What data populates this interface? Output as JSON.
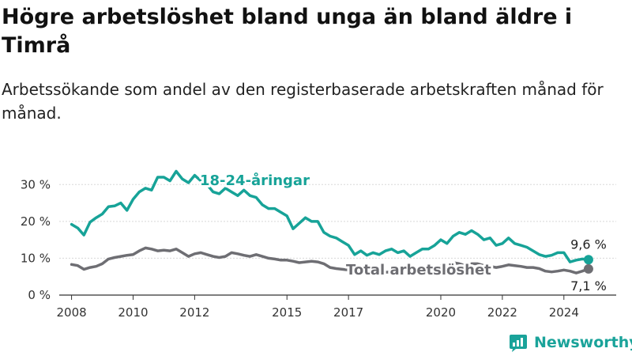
{
  "title": "Högre arbetslöshet bland unga än bland äldre i Timrå",
  "subtitle": "Arbetssökande som andel av den registerbaserade arbetskraften månad för månad.",
  "brand": {
    "name": "Newsworthy"
  },
  "colors": {
    "youth": "#17a398",
    "total": "#6e6e73",
    "grid": "#d8d8d8",
    "axis": "#333333",
    "text": "#333333"
  },
  "chart_data": {
    "type": "line",
    "ylim": [
      0,
      35
    ],
    "yticks": [
      0,
      10,
      20,
      30
    ],
    "ytick_labels": [
      "0 %",
      "10 %",
      "20 %",
      "30 %"
    ],
    "xticks": [
      2008,
      2010,
      2012,
      2015,
      2017,
      2020,
      2022,
      2024
    ],
    "xlim": [
      2007.6,
      2025.7
    ],
    "grid": true,
    "series": [
      {
        "name": "18-24-åringar",
        "color": "#17a398",
        "end_label": "9,6 %",
        "points": [
          [
            2008.0,
            19.2
          ],
          [
            2008.2,
            18.2
          ],
          [
            2008.4,
            16.3
          ],
          [
            2008.6,
            19.8
          ],
          [
            2008.8,
            21.0
          ],
          [
            2009.0,
            22.0
          ],
          [
            2009.2,
            24.0
          ],
          [
            2009.4,
            24.2
          ],
          [
            2009.6,
            25.0
          ],
          [
            2009.8,
            23.0
          ],
          [
            2010.0,
            26.0
          ],
          [
            2010.2,
            28.0
          ],
          [
            2010.4,
            29.0
          ],
          [
            2010.6,
            28.5
          ],
          [
            2010.8,
            32.0
          ],
          [
            2011.0,
            32.0
          ],
          [
            2011.2,
            31.0
          ],
          [
            2011.4,
            33.6
          ],
          [
            2011.6,
            31.5
          ],
          [
            2011.8,
            30.5
          ],
          [
            2012.0,
            32.5
          ],
          [
            2012.2,
            31.0
          ],
          [
            2012.4,
            30.0
          ],
          [
            2012.6,
            28.0
          ],
          [
            2012.8,
            27.5
          ],
          [
            2013.0,
            29.0
          ],
          [
            2013.2,
            28.0
          ],
          [
            2013.4,
            27.0
          ],
          [
            2013.6,
            28.5
          ],
          [
            2013.8,
            27.0
          ],
          [
            2014.0,
            26.5
          ],
          [
            2014.2,
            24.5
          ],
          [
            2014.4,
            23.5
          ],
          [
            2014.6,
            23.5
          ],
          [
            2014.8,
            22.5
          ],
          [
            2015.0,
            21.5
          ],
          [
            2015.2,
            18.0
          ],
          [
            2015.4,
            19.5
          ],
          [
            2015.6,
            21.0
          ],
          [
            2015.8,
            20.0
          ],
          [
            2016.0,
            20.0
          ],
          [
            2016.2,
            17.0
          ],
          [
            2016.4,
            16.0
          ],
          [
            2016.6,
            15.5
          ],
          [
            2016.8,
            14.5
          ],
          [
            2017.0,
            13.5
          ],
          [
            2017.2,
            11.0
          ],
          [
            2017.4,
            12.0
          ],
          [
            2017.6,
            10.8
          ],
          [
            2017.8,
            11.5
          ],
          [
            2018.0,
            11.0
          ],
          [
            2018.2,
            12.0
          ],
          [
            2018.4,
            12.5
          ],
          [
            2018.6,
            11.5
          ],
          [
            2018.8,
            12.0
          ],
          [
            2019.0,
            10.5
          ],
          [
            2019.2,
            11.5
          ],
          [
            2019.4,
            12.5
          ],
          [
            2019.6,
            12.5
          ],
          [
            2019.8,
            13.5
          ],
          [
            2020.0,
            15.0
          ],
          [
            2020.2,
            14.0
          ],
          [
            2020.4,
            16.0
          ],
          [
            2020.6,
            17.0
          ],
          [
            2020.8,
            16.5
          ],
          [
            2021.0,
            17.5
          ],
          [
            2021.2,
            16.5
          ],
          [
            2021.4,
            15.0
          ],
          [
            2021.6,
            15.5
          ],
          [
            2021.8,
            13.5
          ],
          [
            2022.0,
            14.0
          ],
          [
            2022.2,
            15.5
          ],
          [
            2022.4,
            14.0
          ],
          [
            2022.6,
            13.5
          ],
          [
            2022.8,
            13.0
          ],
          [
            2023.0,
            12.0
          ],
          [
            2023.2,
            11.0
          ],
          [
            2023.4,
            10.5
          ],
          [
            2023.6,
            10.8
          ],
          [
            2023.8,
            11.5
          ],
          [
            2024.0,
            11.5
          ],
          [
            2024.2,
            9.0
          ],
          [
            2024.4,
            9.5
          ],
          [
            2024.6,
            9.8
          ],
          [
            2024.8,
            9.6
          ]
        ]
      },
      {
        "name": "Total arbetslöshet",
        "color": "#6e6e73",
        "end_label": "7,1 %",
        "points": [
          [
            2008.0,
            8.3
          ],
          [
            2008.2,
            8.0
          ],
          [
            2008.4,
            7.0
          ],
          [
            2008.6,
            7.5
          ],
          [
            2008.8,
            7.8
          ],
          [
            2009.0,
            8.5
          ],
          [
            2009.2,
            9.8
          ],
          [
            2009.4,
            10.2
          ],
          [
            2009.6,
            10.5
          ],
          [
            2009.8,
            10.8
          ],
          [
            2010.0,
            11.0
          ],
          [
            2010.2,
            12.0
          ],
          [
            2010.4,
            12.8
          ],
          [
            2010.6,
            12.5
          ],
          [
            2010.8,
            12.0
          ],
          [
            2011.0,
            12.2
          ],
          [
            2011.2,
            12.0
          ],
          [
            2011.4,
            12.5
          ],
          [
            2011.6,
            11.5
          ],
          [
            2011.8,
            10.5
          ],
          [
            2012.0,
            11.2
          ],
          [
            2012.2,
            11.5
          ],
          [
            2012.4,
            11.0
          ],
          [
            2012.6,
            10.5
          ],
          [
            2012.8,
            10.2
          ],
          [
            2013.0,
            10.5
          ],
          [
            2013.2,
            11.5
          ],
          [
            2013.4,
            11.2
          ],
          [
            2013.6,
            10.8
          ],
          [
            2013.8,
            10.5
          ],
          [
            2014.0,
            11.0
          ],
          [
            2014.2,
            10.5
          ],
          [
            2014.4,
            10.0
          ],
          [
            2014.6,
            9.8
          ],
          [
            2014.8,
            9.5
          ],
          [
            2015.0,
            9.5
          ],
          [
            2015.2,
            9.2
          ],
          [
            2015.4,
            8.8
          ],
          [
            2015.6,
            9.0
          ],
          [
            2015.8,
            9.2
          ],
          [
            2016.0,
            9.0
          ],
          [
            2016.2,
            8.5
          ],
          [
            2016.4,
            7.5
          ],
          [
            2016.6,
            7.2
          ],
          [
            2016.8,
            7.0
          ],
          [
            2017.0,
            6.8
          ],
          [
            2017.2,
            6.5
          ],
          [
            2017.4,
            6.3
          ],
          [
            2017.6,
            6.2
          ],
          [
            2017.8,
            6.0
          ],
          [
            2018.0,
            6.0
          ],
          [
            2018.2,
            6.2
          ],
          [
            2018.4,
            6.3
          ],
          [
            2018.6,
            6.0
          ],
          [
            2018.8,
            6.0
          ],
          [
            2019.0,
            6.2
          ],
          [
            2019.2,
            6.5
          ],
          [
            2019.4,
            6.5
          ],
          [
            2019.6,
            6.8
          ],
          [
            2019.8,
            7.0
          ],
          [
            2020.0,
            8.0
          ],
          [
            2020.2,
            8.5
          ],
          [
            2020.4,
            8.8
          ],
          [
            2020.6,
            8.5
          ],
          [
            2020.8,
            8.0
          ],
          [
            2021.0,
            8.5
          ],
          [
            2021.2,
            8.5
          ],
          [
            2021.4,
            8.0
          ],
          [
            2021.6,
            7.8
          ],
          [
            2021.8,
            7.5
          ],
          [
            2022.0,
            7.8
          ],
          [
            2022.2,
            8.2
          ],
          [
            2022.4,
            8.0
          ],
          [
            2022.6,
            7.8
          ],
          [
            2022.8,
            7.5
          ],
          [
            2023.0,
            7.5
          ],
          [
            2023.2,
            7.2
          ],
          [
            2023.4,
            6.5
          ],
          [
            2023.6,
            6.3
          ],
          [
            2023.8,
            6.5
          ],
          [
            2024.0,
            6.8
          ],
          [
            2024.2,
            6.5
          ],
          [
            2024.4,
            6.0
          ],
          [
            2024.6,
            6.5
          ],
          [
            2024.8,
            7.1
          ]
        ]
      }
    ]
  }
}
